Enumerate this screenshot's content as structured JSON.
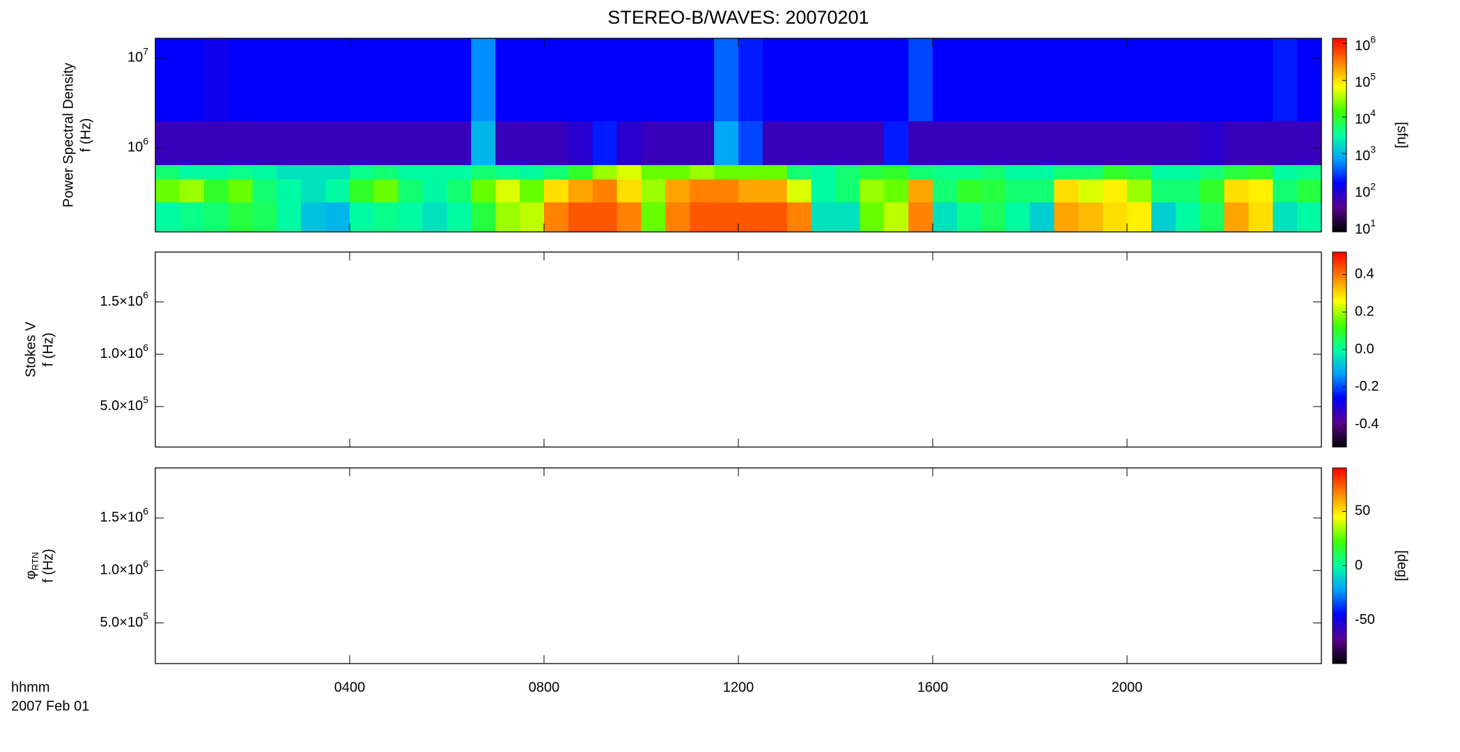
{
  "chart_data": [
    {
      "type": "heatmap",
      "title": "STEREO-B/WAVES: 20070201",
      "ylabel": [
        "Power Spectral Density",
        "f (Hz)"
      ],
      "xlim": [
        0,
        24
      ],
      "x": [
        0,
        0.5,
        1,
        1.5,
        2,
        2.5,
        3,
        3.5,
        4,
        4.5,
        5,
        5.5,
        6,
        6.5,
        7,
        7.5,
        8,
        8.5,
        9,
        9.5,
        10,
        10.5,
        11,
        11.5,
        12,
        12.5,
        13,
        13.5,
        14,
        14.5,
        15,
        15.5,
        16,
        16.5,
        17,
        17.5,
        18,
        18.5,
        19,
        19.5,
        20,
        20.5,
        21,
        21.5,
        22,
        22.5,
        23,
        23.5
      ],
      "y": [
        116000,
        250000,
        450000,
        650000,
        2000000,
        16600000
      ],
      "values": [
        [
          3000,
          4000,
          5000,
          8000,
          6000,
          3000,
          1200,
          1000,
          3000,
          4000,
          3000,
          2000,
          3000,
          8000,
          30000,
          40000,
          300000,
          500000,
          500000,
          300000,
          20000,
          300000,
          500000,
          500000,
          500000,
          500000,
          300000,
          2000,
          2000,
          20000,
          40000,
          300000,
          2000,
          4000,
          6000,
          3000,
          1500,
          200000,
          150000,
          100000,
          80000,
          1500,
          3000,
          6000,
          200000,
          100000,
          2000,
          3000
        ],
        [
          20000,
          30000,
          10000,
          20000,
          5000,
          3000,
          2000,
          3000,
          10000,
          20000,
          5000,
          3000,
          5000,
          20000,
          50000,
          20000,
          100000,
          200000,
          300000,
          100000,
          30000,
          200000,
          300000,
          300000,
          200000,
          200000,
          50000,
          3000,
          5000,
          30000,
          20000,
          200000,
          5000,
          10000,
          8000,
          5000,
          5000,
          100000,
          50000,
          80000,
          30000,
          5000,
          5000,
          10000,
          100000,
          80000,
          5000,
          8000
        ],
        [
          5000,
          3000,
          3000,
          4000,
          3000,
          2000,
          2000,
          2000,
          4000,
          5000,
          3000,
          3000,
          3000,
          5000,
          4000,
          3000,
          5000,
          10000,
          30000,
          50000,
          20000,
          20000,
          30000,
          20000,
          20000,
          20000,
          5000,
          3000,
          5000,
          8000,
          10000,
          5000,
          4000,
          4000,
          5000,
          3000,
          3000,
          5000,
          5000,
          10000,
          8000,
          3000,
          3000,
          5000,
          8000,
          10000,
          3000,
          4000
        ],
        [
          60,
          60,
          60,
          60,
          60,
          60,
          60,
          60,
          60,
          60,
          60,
          60,
          60,
          1000,
          60,
          60,
          60,
          80,
          200,
          80,
          60,
          60,
          60,
          800,
          300,
          60,
          60,
          60,
          60,
          60,
          200,
          60,
          60,
          60,
          60,
          60,
          60,
          60,
          60,
          60,
          60,
          60,
          60,
          80,
          60,
          60,
          60,
          60
        ],
        [
          150,
          150,
          120,
          150,
          150,
          150,
          150,
          150,
          150,
          150,
          150,
          150,
          150,
          600,
          150,
          150,
          150,
          150,
          150,
          150,
          150,
          150,
          150,
          400,
          200,
          150,
          150,
          150,
          150,
          150,
          150,
          300,
          150,
          150,
          150,
          150,
          150,
          150,
          150,
          150,
          150,
          150,
          150,
          150,
          150,
          150,
          200,
          150
        ]
      ],
      "ylog": true,
      "ylim": [
        116000,
        16600000
      ],
      "yticks": [
        {
          "value": 1000000,
          "label": "10",
          "sup": "6"
        },
        {
          "value": 10000000,
          "label": "10",
          "sup": "7"
        }
      ],
      "colorbar": {
        "log": true,
        "lim": [
          7.4,
          1400000
        ],
        "label": "[sfu]",
        "ticks": [
          {
            "value": 10,
            "label": "10",
            "sup": "1"
          },
          {
            "value": 100,
            "label": "10",
            "sup": "2"
          },
          {
            "value": 1000,
            "label": "10",
            "sup": "3"
          },
          {
            "value": 10000,
            "label": "10",
            "sup": "4"
          },
          {
            "value": 100000,
            "label": "10",
            "sup": "5"
          },
          {
            "value": 1000000,
            "label": "10",
            "sup": "6"
          }
        ]
      },
      "colormap": [
        "#000000",
        "#5a0090",
        "#0000ff",
        "#00a0ff",
        "#00ffa0",
        "#40ff00",
        "#ffff00",
        "#ff8000",
        "#ff0000"
      ]
    },
    {
      "type": "heatmap",
      "ylabel": [
        "Stokes V",
        "f (Hz)"
      ],
      "xlim": [
        0,
        24
      ],
      "ylim": [
        113000,
        1977000
      ],
      "yticks": [
        {
          "value": 500000,
          "label": "5.0×10",
          "sup": "5"
        },
        {
          "value": 1000000,
          "label": "1.0×10",
          "sup": "6"
        },
        {
          "value": 1500000,
          "label": "1.5×10",
          "sup": "6"
        }
      ],
      "colorbar": {
        "log": false,
        "lim": [
          -0.52,
          0.52
        ],
        "ticks": [
          0.4,
          0.2,
          {
            "value": 0,
            "label": "0.0"
          },
          -0.2,
          -0.4
        ]
      },
      "colormap": [
        "#000000",
        "#5a0090",
        "#0000ff",
        "#00a0ff",
        "#00ffa0",
        "#40ff00",
        "#ffff00",
        "#ff8000",
        "#ff0000"
      ]
    },
    {
      "type": "heatmap",
      "ylabel": [
        "φ",
        "f (Hz)"
      ],
      "ylabel_sub": "RTN",
      "xlim": [
        0,
        24
      ],
      "ylim": [
        113000,
        1977000
      ],
      "yticks": [
        {
          "value": 500000,
          "label": "5.0×10",
          "sup": "5"
        },
        {
          "value": 1000000,
          "label": "1.0×10",
          "sup": "6"
        },
        {
          "value": 1500000,
          "label": "1.5×10",
          "sup": "6"
        }
      ],
      "colorbar": {
        "log": false,
        "lim": [
          -90,
          90
        ],
        "label": "[deg]",
        "ticks": [
          50,
          0,
          -50
        ]
      },
      "colormap": [
        "#000000",
        "#5a0090",
        "#0000ff",
        "#00a0ff",
        "#00ffa0",
        "#40ff00",
        "#ffff00",
        "#ff8000",
        "#ff0000"
      ],
      "xticks": [
        {
          "value": 4,
          "label": "0400"
        },
        {
          "value": 8,
          "label": "0800"
        },
        {
          "value": 12,
          "label": "1200"
        },
        {
          "value": 16,
          "label": "1600"
        },
        {
          "value": 20,
          "label": "2000"
        }
      ],
      "xlabel": [
        "hhmm",
        "2007 Feb 01"
      ]
    }
  ]
}
